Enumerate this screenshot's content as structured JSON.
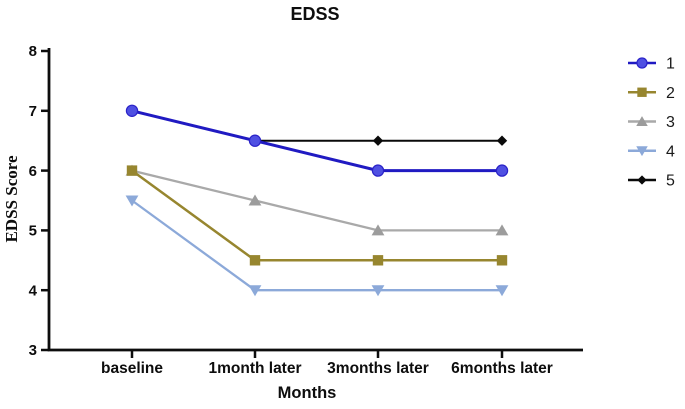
{
  "chart_data": {
    "type": "line",
    "title": "EDSS",
    "xlabel": "Months",
    "ylabel": "EDSS Score",
    "categories": [
      "baseline",
      "1month later",
      "3months later",
      "6months later"
    ],
    "yticks": [
      8,
      7,
      6,
      5,
      4,
      3
    ],
    "ylim": [
      3,
      8
    ],
    "grid": false,
    "legend_position": "right",
    "axis_color": "#0d0d0d",
    "series": [
      {
        "name": "1",
        "marker": "circle",
        "line_color": "#201ac2",
        "marker_color": "#4f50e2",
        "marker_edge": "#2a22c8",
        "line_width": 3.0,
        "values": [
          7.0,
          6.5,
          6.0,
          6.0
        ]
      },
      {
        "name": "2",
        "marker": "square",
        "line_color": "#97862f",
        "marker_color": "#97862f",
        "marker_edge": "#97862f",
        "line_width": 2.5,
        "values": [
          6.0,
          4.5,
          4.5,
          4.5
        ]
      },
      {
        "name": "3",
        "marker": "triangle-up",
        "line_color": "#a9a9a9",
        "marker_color": "#9c9c9c",
        "marker_edge": "#9c9c9c",
        "line_width": 2.3,
        "values": [
          6.0,
          5.5,
          5.0,
          5.0
        ]
      },
      {
        "name": "4",
        "marker": "triangle-down",
        "line_color": "#8ca9d9",
        "marker_color": "#8ca9d9",
        "marker_edge": "#8ca9d9",
        "line_width": 2.3,
        "values": [
          5.5,
          4.0,
          4.0,
          4.0
        ]
      },
      {
        "name": "5",
        "marker": "diamond",
        "line_color": "#0a0a0a",
        "marker_color": "#0a0a0a",
        "marker_edge": "#0a0a0a",
        "line_width": 2.0,
        "values": [
          7.0,
          6.5,
          6.5,
          6.5
        ]
      }
    ]
  }
}
